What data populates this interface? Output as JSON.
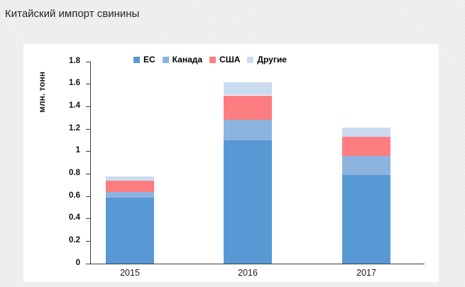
{
  "header": {
    "title": "Китайский импорт свинины"
  },
  "chart_data": {
    "type": "bar",
    "stacked": true,
    "title": "Китайский импорт свинины",
    "xlabel": "",
    "ylabel": "млн. тонн",
    "categories": [
      "2015",
      "2016",
      "2017"
    ],
    "series": [
      {
        "name": "ЕС",
        "color": "#5899D5",
        "values": [
          0.59,
          1.1,
          0.79
        ]
      },
      {
        "name": "Канада",
        "color": "#8CB4DF",
        "values": [
          0.05,
          0.18,
          0.17
        ]
      },
      {
        "name": "США",
        "color": "#FD7C80",
        "values": [
          0.1,
          0.22,
          0.17
        ]
      },
      {
        "name": "Другие",
        "color": "#CBDCF1",
        "values": [
          0.04,
          0.12,
          0.08
        ]
      }
    ],
    "stack_totals": [
      0.78,
      1.62,
      1.21
    ],
    "ylim": [
      0,
      1.8
    ],
    "ytick_step": 0.2,
    "yticks": [
      "0",
      "0.2",
      "0.4",
      "0.6",
      "0.8",
      "1",
      "1.2",
      "1.4",
      "1.6",
      "1.8"
    ],
    "legend_position": "top",
    "grid": false,
    "axis_color": "#3b3b3b",
    "plot_background": "#ffffff",
    "page_background": "#f2f0ee"
  }
}
